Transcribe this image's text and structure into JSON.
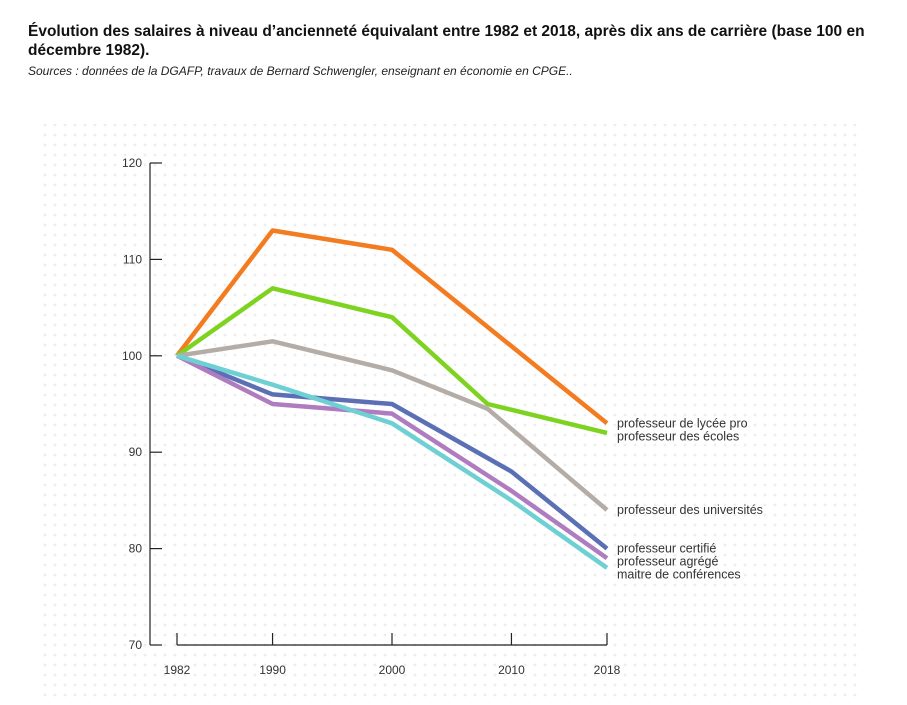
{
  "header": {
    "title": "Évolution des salaires à niveau d’ancienneté équivalant entre 1982 et 2018, après dix ans de carrière (base 100 en décembre 1982).",
    "source": "Sources : données de la DGAFP, travaux de Bernard Schwengler, enseignant en économie en CPGE.."
  },
  "chart_data": {
    "type": "line",
    "title": "Évolution des salaires à niveau d’ancienneté équivalant entre 1982 et 2018, après dix ans de carrière (base 100 en décembre 1982).",
    "xlabel": "",
    "ylabel": "",
    "x_ticks": [
      1982,
      1990,
      2000,
      2010,
      2018
    ],
    "y_ticks": [
      70,
      80,
      90,
      100,
      110,
      120
    ],
    "xlim": [
      1982,
      2018
    ],
    "ylim": [
      70,
      120
    ],
    "legend_position": "right (labels at line ends)",
    "series": [
      {
        "name": "professeur de lycée pro",
        "color": "#f47c20",
        "points": [
          [
            1982,
            100
          ],
          [
            1990,
            113
          ],
          [
            2000,
            111
          ],
          [
            2018,
            93
          ]
        ]
      },
      {
        "name": "professeur des écoles",
        "color": "#7ed321",
        "points": [
          [
            1982,
            100
          ],
          [
            1990,
            107
          ],
          [
            2000,
            104
          ],
          [
            2008,
            95
          ],
          [
            2018,
            92
          ]
        ]
      },
      {
        "name": "professeur des universités",
        "color": "#b4aca6",
        "points": [
          [
            1982,
            100
          ],
          [
            1990,
            101.5
          ],
          [
            2000,
            98.5
          ],
          [
            2008,
            94.5
          ],
          [
            2018,
            84
          ]
        ]
      },
      {
        "name": "professeur certifié",
        "color": "#5b6fb5",
        "points": [
          [
            1982,
            100
          ],
          [
            1990,
            96
          ],
          [
            2000,
            95
          ],
          [
            2010,
            88
          ],
          [
            2018,
            80
          ]
        ]
      },
      {
        "name": "professeur agrégé",
        "color": "#b07cc0",
        "points": [
          [
            1982,
            100
          ],
          [
            1990,
            95
          ],
          [
            2000,
            94
          ],
          [
            2010,
            86
          ],
          [
            2018,
            79
          ]
        ]
      },
      {
        "name": "maitre de conférences",
        "color": "#6fd0d3",
        "points": [
          [
            1982,
            100
          ],
          [
            1990,
            97
          ],
          [
            2000,
            93
          ],
          [
            2010,
            85
          ],
          [
            2018,
            78
          ]
        ]
      }
    ]
  }
}
